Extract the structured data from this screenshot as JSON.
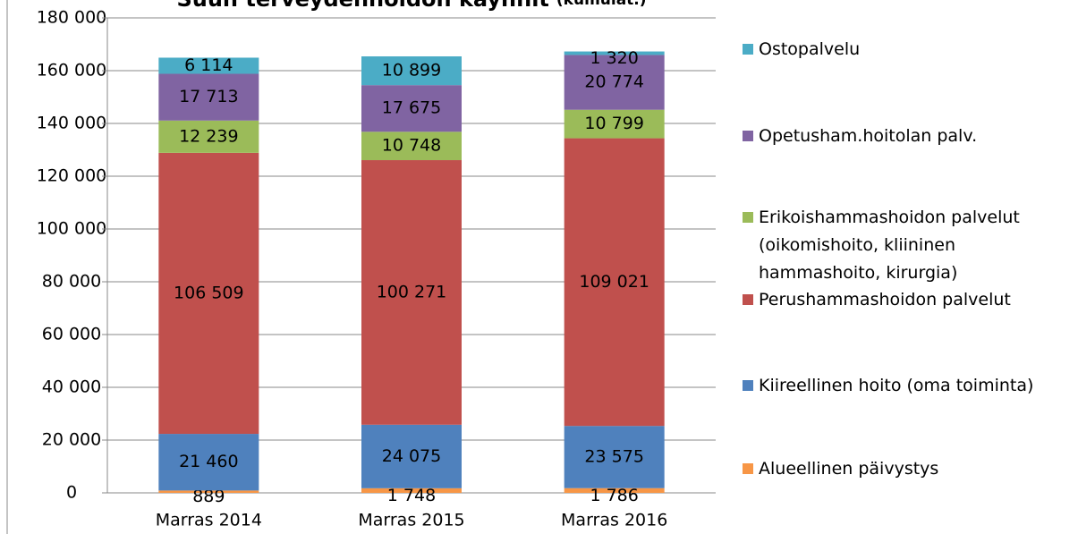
{
  "chart_data": {
    "type": "stacked_bar",
    "title": "Suun terveydenhoidon käynnit",
    "subtitle": "(kumulat.)",
    "categories": [
      "Marras 2014",
      "Marras 2015",
      "Marras 2016"
    ],
    "series": [
      {
        "name": "Alueellinen päivystys",
        "color": "#F79646",
        "values": [
          889,
          1748,
          1786
        ],
        "value_labels": [
          "889",
          "1 748",
          "1 786"
        ]
      },
      {
        "name": "Kiireellinen hoito (oma toiminta)",
        "color": "#4F81BD",
        "values": [
          21460,
          24075,
          23575
        ],
        "value_labels": [
          "21 460",
          "24 075",
          "23 575"
        ]
      },
      {
        "name": "Perushammashoidon palvelut",
        "color": "#C0504D",
        "values": [
          106509,
          100271,
          109021
        ],
        "value_labels": [
          "106 509",
          "100 271",
          "109 021"
        ]
      },
      {
        "name": "Erikoishammashoidon palvelut (oikomishoito, kliininen hammashoito, kirurgia)",
        "color": "#9BBB59",
        "values": [
          12239,
          10748,
          10799
        ],
        "value_labels": [
          "12 239",
          "10 748",
          "10 799"
        ]
      },
      {
        "name": "Opetusham.hoitolan palv.",
        "color": "#8064A2",
        "values": [
          17713,
          17675,
          20774
        ],
        "value_labels": [
          "17 713",
          "17 675",
          "20 774"
        ]
      },
      {
        "name": "Ostopalvelu",
        "color": "#4BACC6",
        "values": [
          6114,
          10899,
          1320
        ],
        "value_labels": [
          "6 114",
          "10 899",
          "1 320"
        ]
      }
    ],
    "ylim": [
      0,
      180000
    ],
    "yticks": [
      0,
      {
        "value": 20000,
        "label": "20 000"
      },
      {
        "value": 40000,
        "label": "40 000"
      },
      {
        "value": 60000,
        "label": "60 000"
      },
      {
        "value": 80000,
        "label": "80 000"
      },
      {
        "value": 100000,
        "label": "100 000"
      },
      {
        "value": 120000,
        "label": "120 000"
      },
      {
        "value": 140000,
        "label": "140 000"
      },
      {
        "value": 160000,
        "label": "160 000"
      },
      {
        "value": 180000,
        "label": "180 000"
      }
    ],
    "grid": true,
    "legend": "right"
  }
}
